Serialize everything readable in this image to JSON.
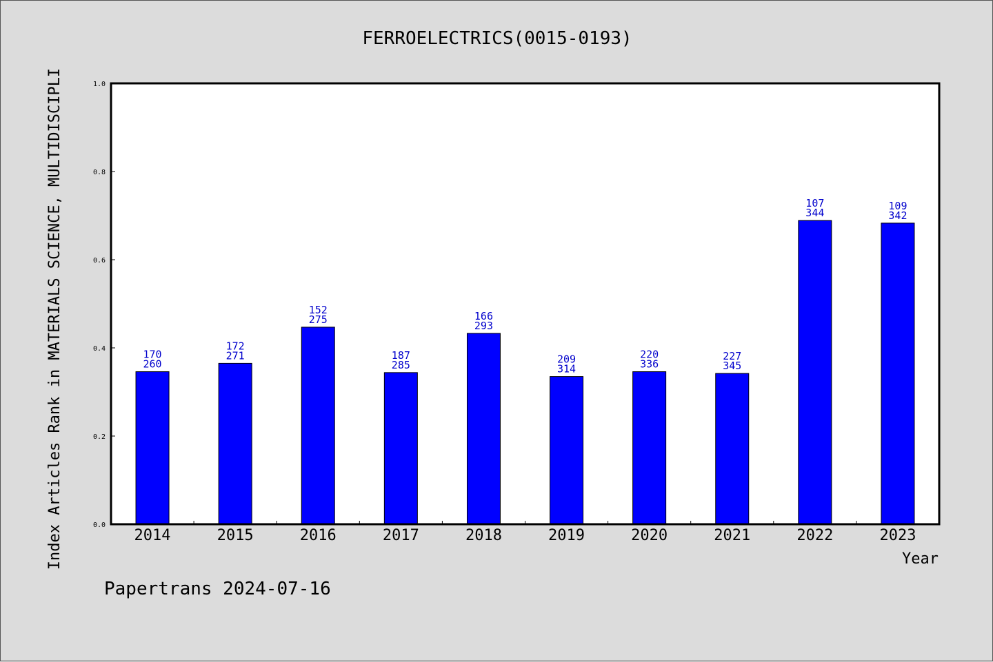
{
  "chart_data": {
    "type": "bar",
    "title": "FERROELECTRICS(0015-0193)",
    "xlabel": "Year",
    "ylabel": "Index Articles Rank in MATERIALS SCIENCE, MULTIDISCIPLI",
    "ylim": [
      0,
      1.0
    ],
    "yticks": [
      "0.0",
      "0.2",
      "0.4",
      "0.6",
      "0.8",
      "1.0"
    ],
    "categories": [
      "2014",
      "2015",
      "2016",
      "2017",
      "2018",
      "2019",
      "2020",
      "2021",
      "2022",
      "2023"
    ],
    "values": [
      0.346,
      0.365,
      0.447,
      0.344,
      0.433,
      0.335,
      0.346,
      0.342,
      0.689,
      0.683
    ],
    "rank": [
      "170",
      "172",
      "152",
      "187",
      "166",
      "209",
      "220",
      "227",
      "107",
      "109"
    ],
    "total": [
      "260",
      "271",
      "275",
      "285",
      "293",
      "314",
      "336",
      "345",
      "344",
      "342"
    ],
    "grid": false,
    "bar_color": "#0000ff",
    "label_color": "#0000cc"
  },
  "footer": "Papertrans 2024-07-16"
}
